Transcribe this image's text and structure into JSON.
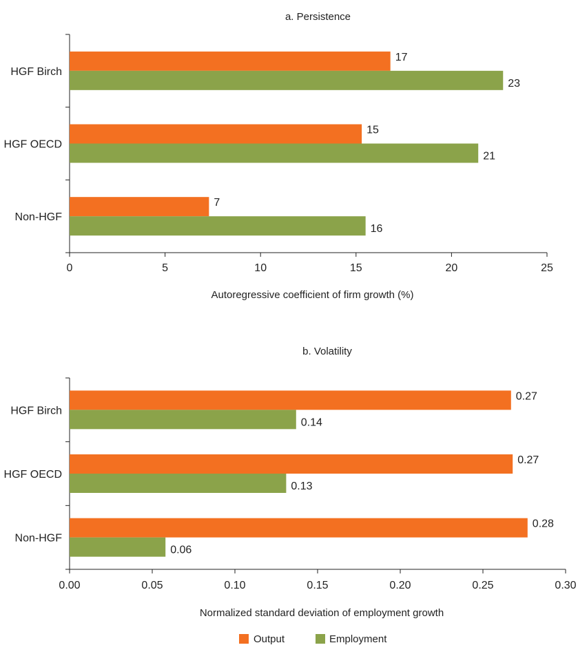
{
  "colors": {
    "output": "#f37021",
    "employment": "#8ba34a",
    "axis": "#222222"
  },
  "legend": {
    "items": [
      "Output",
      "Employment"
    ],
    "placement": "bottom-center"
  },
  "chart_data": [
    {
      "type": "bar",
      "orientation": "horizontal",
      "title": "a. Persistence",
      "xlabel": "Autoregressive coefficient of firm growth (%)",
      "ylabel": "",
      "categories": [
        "HGF Birch",
        "HGF OECD",
        "Non-HGF"
      ],
      "series": [
        {
          "name": "Output",
          "values": [
            17,
            15,
            7
          ],
          "labels": [
            "17",
            "15",
            "7"
          ],
          "plotted": [
            16.8,
            15.3,
            7.3
          ]
        },
        {
          "name": "Employment",
          "values": [
            23,
            21,
            16
          ],
          "labels": [
            "23",
            "21",
            "16"
          ],
          "plotted": [
            22.7,
            21.4,
            15.5
          ]
        }
      ],
      "xlim": [
        0,
        25
      ],
      "xticks": [
        "0",
        "5",
        "10",
        "15",
        "20",
        "25"
      ],
      "grid": false
    },
    {
      "type": "bar",
      "orientation": "horizontal",
      "title": "b. Volatility",
      "xlabel": "Normalized standard deviation of employment growth",
      "ylabel": "",
      "categories": [
        "HGF Birch",
        "HGF OECD",
        "Non-HGF"
      ],
      "series": [
        {
          "name": "Output",
          "values": [
            0.27,
            0.27,
            0.28
          ],
          "labels": [
            "0.27",
            "0.27",
            "0.28"
          ],
          "plotted": [
            0.267,
            0.268,
            0.277
          ]
        },
        {
          "name": "Employment",
          "values": [
            0.14,
            0.13,
            0.06
          ],
          "labels": [
            "0.14",
            "0.13",
            "0.06"
          ],
          "plotted": [
            0.137,
            0.131,
            0.058
          ]
        }
      ],
      "xlim": [
        0,
        0.3
      ],
      "xticks": [
        "0.00",
        "0.05",
        "0.10",
        "0.15",
        "0.20",
        "0.25",
        "0.30"
      ],
      "grid": false
    }
  ]
}
